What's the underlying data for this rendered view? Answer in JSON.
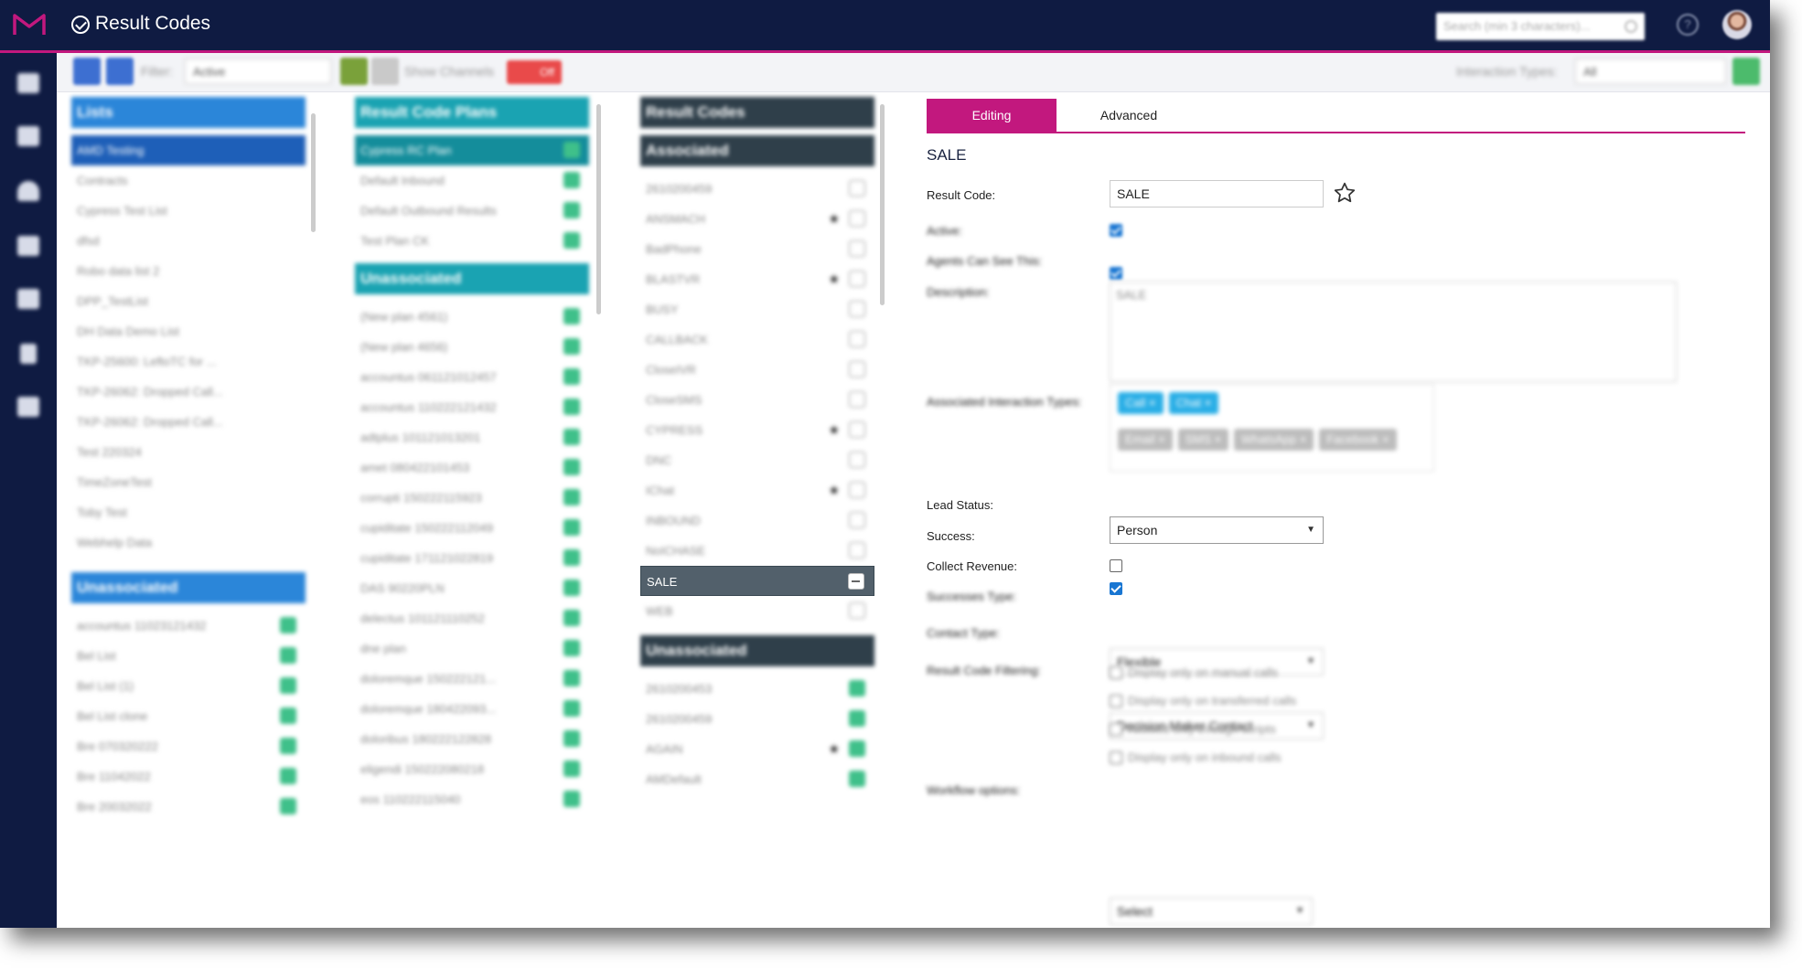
{
  "app": {
    "title": "Result Codes"
  },
  "header": {
    "search_placeholder": "Search (min 3 characters)...",
    "help_icon": "?"
  },
  "toolbar": {
    "filter_label": "Filter:",
    "filter_value": "Active",
    "show_channels_label": "Show Channels",
    "off_label": "Off",
    "interaction_types_label": "Interaction Types:",
    "interaction_types_value": "All"
  },
  "lists": {
    "title": "Lists",
    "associated": [
      "AMD Testing",
      "Contracts",
      "Cypress Test List",
      "dfsd",
      "Robo data list 2",
      "DPP_TestList",
      "DH Data Demo List",
      "TKP-25600: LeftoTC for ...",
      "TKP-26062: Dropped Call...",
      "TKP-26062: Dropped Call...",
      "Test 220324",
      "TimeZoneTest",
      "Toby Test",
      "Webhelp Data"
    ],
    "unassociated_title": "Unassociated",
    "unassociated": [
      "accountus 11023121432",
      "Bel List",
      "Bel List (1)",
      "Bel List clone",
      "Bre 070320222",
      "Bre 11042022",
      "Bre 20032022"
    ]
  },
  "plans": {
    "title": "Result Code Plans",
    "associated": [
      "Cypress RC Plan",
      "Default Inbound",
      "Default Outbound Results",
      "Test Plan CK"
    ],
    "unassociated_title": "Unassociated",
    "unassociated": [
      "(New plan 4561)",
      "(New plan 4656)",
      "accountus 061121012457",
      "accountus 110222121432",
      "adtplus 101121013201",
      "amet 080422101453",
      "corrupti 150222115923",
      "cupiditate 150222112049",
      "cupiditate 171121022819",
      "DAS 90220PLN",
      "delectus 101121110252",
      "dne plan",
      "doloremque 150222121...",
      "doloremque 180422093...",
      "doloribus 180222122828",
      "eligendi 150222080218",
      "eos 110222115040"
    ]
  },
  "codes": {
    "title": "Result Codes",
    "associated_title": "Associated",
    "associated": [
      {
        "name": "2610200459",
        "star": false
      },
      {
        "name": "ANSMACH",
        "star": true
      },
      {
        "name": "BadPhone",
        "star": false
      },
      {
        "name": "BLASTVR",
        "star": true
      },
      {
        "name": "BUSY",
        "star": false
      },
      {
        "name": "CALLBACK",
        "star": false
      },
      {
        "name": "CloseIVR",
        "star": false
      },
      {
        "name": "CloseSMS",
        "star": false
      },
      {
        "name": "CYPRESS",
        "star": true
      },
      {
        "name": "DNC",
        "star": false
      },
      {
        "name": "IChat",
        "star": true
      },
      {
        "name": "INBOUND",
        "star": false
      },
      {
        "name": "NoICHASE",
        "star": false
      },
      {
        "name": "SALE",
        "star": false,
        "selected": true
      },
      {
        "name": "WEB",
        "star": false
      }
    ],
    "unassociated_title": "Unassociated",
    "unassociated": [
      {
        "name": "2610200453",
        "star": false
      },
      {
        "name": "2610200459",
        "star": false
      },
      {
        "name": "AGAIN",
        "star": true
      },
      {
        "name": "AMDefault",
        "star": false
      }
    ]
  },
  "editor": {
    "tab_editing": "Editing",
    "tab_advanced": "Advanced",
    "heading": "SALE",
    "result_code_label": "Result Code:",
    "result_code_value": "SALE",
    "active_label": "Active:",
    "agents_label": "Agents Can See This:",
    "description_label": "Description:",
    "description_value": "SALE",
    "assoc_types_label": "Associated Interaction Types:",
    "assoc_types_selected": [
      "Call",
      "Chat"
    ],
    "assoc_types_available": [
      "Email",
      "SMS",
      "WhatsApp",
      "Facebook"
    ],
    "lead_status_label": "Lead Status:",
    "lead_status_value": "Person",
    "success_label": "Success:",
    "collect_revenue_label": "Collect Revenue:",
    "successes_type_label": "Successes Type:",
    "successes_type_value": "Flexible",
    "contact_type_label": "Contact Type:",
    "contact_type_value": "Decision Maker Contact",
    "filtering_label": "Result Code Filtering:",
    "filter_options": [
      "Display only on manual calls",
      "Display only on transferred calls",
      "Allowed only through scripts",
      "Display only on inbound calls"
    ],
    "workflow_label": "Workflow options:",
    "workflow_value": "Select",
    "states": {
      "active": true,
      "agents": true,
      "success": true,
      "collect_revenue": false
    }
  },
  "colors": {
    "nav": "#0f1b42",
    "accent": "#c2187e",
    "lists": "#2b86d9",
    "plans": "#1aa3b2",
    "codes": "#2f3f4a",
    "green": "#3fc08a"
  }
}
